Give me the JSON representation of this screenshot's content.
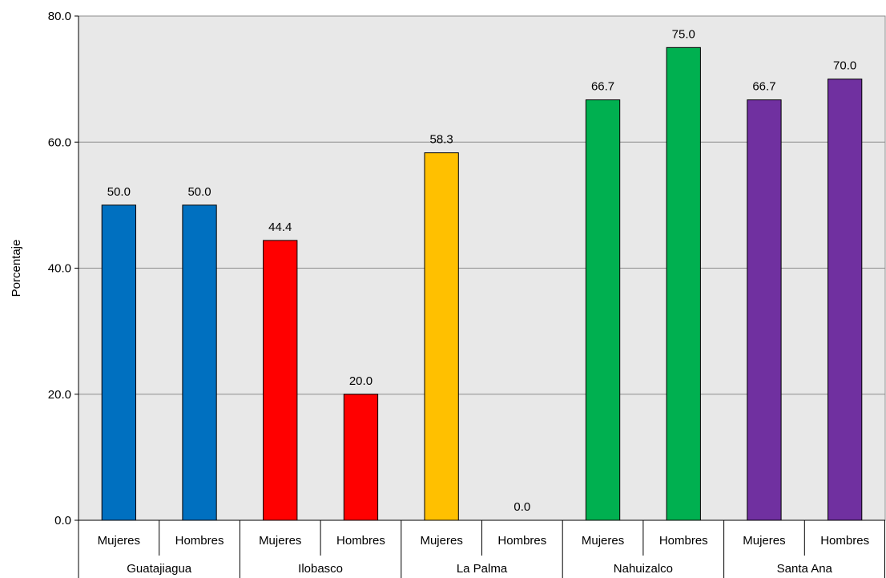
{
  "chart_data": {
    "type": "bar",
    "title": "",
    "xlabel": "",
    "ylabel": "Porcentaje",
    "ylim": [
      0,
      80
    ],
    "yticks": [
      "0.0",
      "20.0",
      "40.0",
      "60.0",
      "80.0"
    ],
    "grid": true,
    "legend": "none",
    "groups": [
      {
        "name": "Guatajiagua",
        "color": "#0070C0",
        "bars": [
          {
            "label": "Mujeres",
            "value": 50.0,
            "text": "50.0"
          },
          {
            "label": "Hombres",
            "value": 50.0,
            "text": "50.0"
          }
        ]
      },
      {
        "name": "Ilobasco",
        "color": "#FF0000",
        "bars": [
          {
            "label": "Mujeres",
            "value": 44.4,
            "text": "44.4"
          },
          {
            "label": "Hombres",
            "value": 20.0,
            "text": "20.0"
          }
        ]
      },
      {
        "name": "La Palma",
        "color": "#FFC000",
        "bars": [
          {
            "label": "Mujeres",
            "value": 58.3,
            "text": "58.3"
          },
          {
            "label": "Hombres",
            "value": 0.0,
            "text": "0.0"
          }
        ]
      },
      {
        "name": "Nahuizalco",
        "color": "#00B050",
        "bars": [
          {
            "label": "Mujeres",
            "value": 66.7,
            "text": "66.7"
          },
          {
            "label": "Hombres",
            "value": 75.0,
            "text": "75.0"
          }
        ]
      },
      {
        "name": "Santa Ana",
        "color": "#7030A0",
        "bars": [
          {
            "label": "Mujeres",
            "value": 66.7,
            "text": "66.7"
          },
          {
            "label": "Hombres",
            "value": 70.0,
            "text": "70.0"
          }
        ]
      }
    ]
  }
}
